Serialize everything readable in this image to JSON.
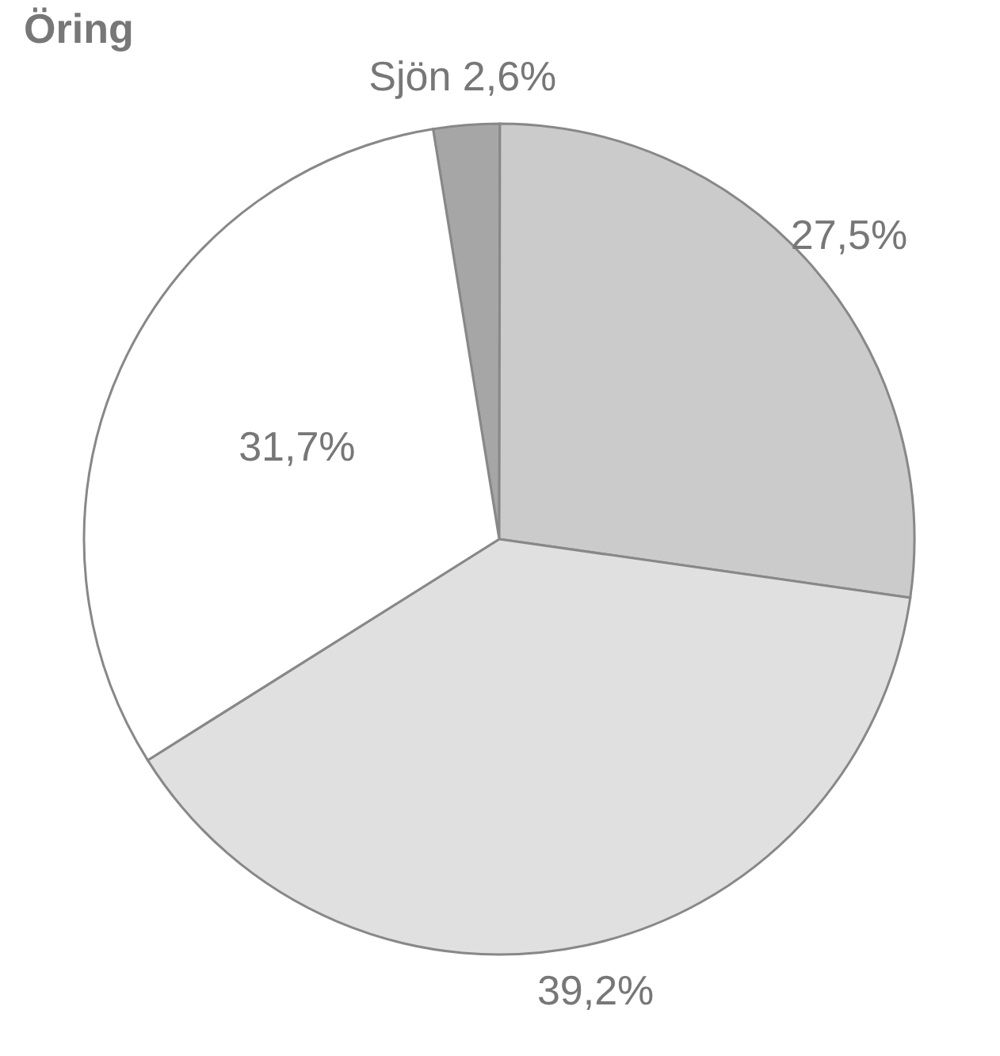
{
  "chart_data": {
    "type": "pie",
    "title": "Öring",
    "categories": [
      "Sjön",
      null,
      null,
      null
    ],
    "values": [
      2.6,
      27.5,
      39.2,
      31.7
    ],
    "value_labels": [
      "2,6%",
      "27,5%",
      "39,2%",
      "31,7%"
    ],
    "colors": [
      "#a6a6a6",
      "#cbcbcb",
      "#e0e0e0",
      "#ffffff"
    ]
  }
}
